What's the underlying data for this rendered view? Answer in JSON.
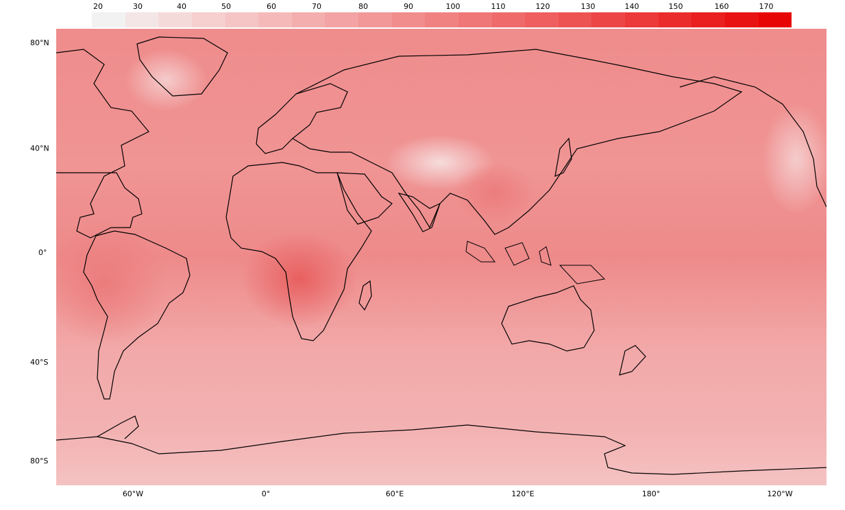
{
  "colorbar": {
    "ticks": [
      "20",
      "30",
      "40",
      "50",
      "60",
      "70",
      "80",
      "90",
      "100",
      "110",
      "120",
      "130",
      "140",
      "150",
      "160",
      "170"
    ],
    "colors": [
      "#f2f2f2",
      "#f4e6e6",
      "#f5dada",
      "#f6cfcf",
      "#f5c4c4",
      "#f5b9b9",
      "#f4aeae",
      "#f3a3a3",
      "#f29898",
      "#f28d8d",
      "#f18282",
      "#f07777",
      "#ef6b6b",
      "#ef5f5f",
      "#ee5353",
      "#ed4646",
      "#ec3939",
      "#eb2c2c",
      "#ea1f1f",
      "#e91212",
      "#e80505"
    ]
  },
  "axes": {
    "lat_labels": [
      "80°N",
      "40°N",
      "0°",
      "40°S",
      "80°S"
    ],
    "lon_labels": [
      "60°W",
      "0°",
      "60°E",
      "120°E",
      "180°",
      "120°W"
    ]
  },
  "map": {
    "base_color": "#f0a2a2",
    "ocean_color": "#f2aaaa",
    "tropical_color": "#ec8080",
    "polar_color": "#f3c0c0",
    "coast_color": "#000000"
  }
}
